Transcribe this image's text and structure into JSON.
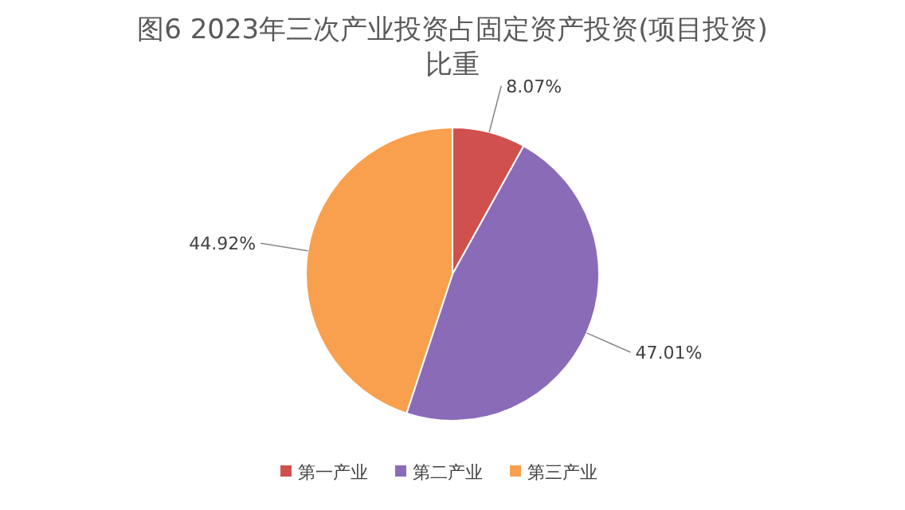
{
  "chart_data": {
    "type": "pie",
    "title": "图6   2023年三次产业投资占固定资产投资(项目投资)比重",
    "categories": [
      "第一产业",
      "第二产业",
      "第三产业"
    ],
    "values": [
      8.07,
      47.01,
      44.92
    ],
    "colors": [
      "#d0504d",
      "#8a6bb8",
      "#f9a04e"
    ],
    "value_labels": [
      "8.07%",
      "47.01%",
      "44.92%"
    ],
    "legend": "bottom"
  }
}
